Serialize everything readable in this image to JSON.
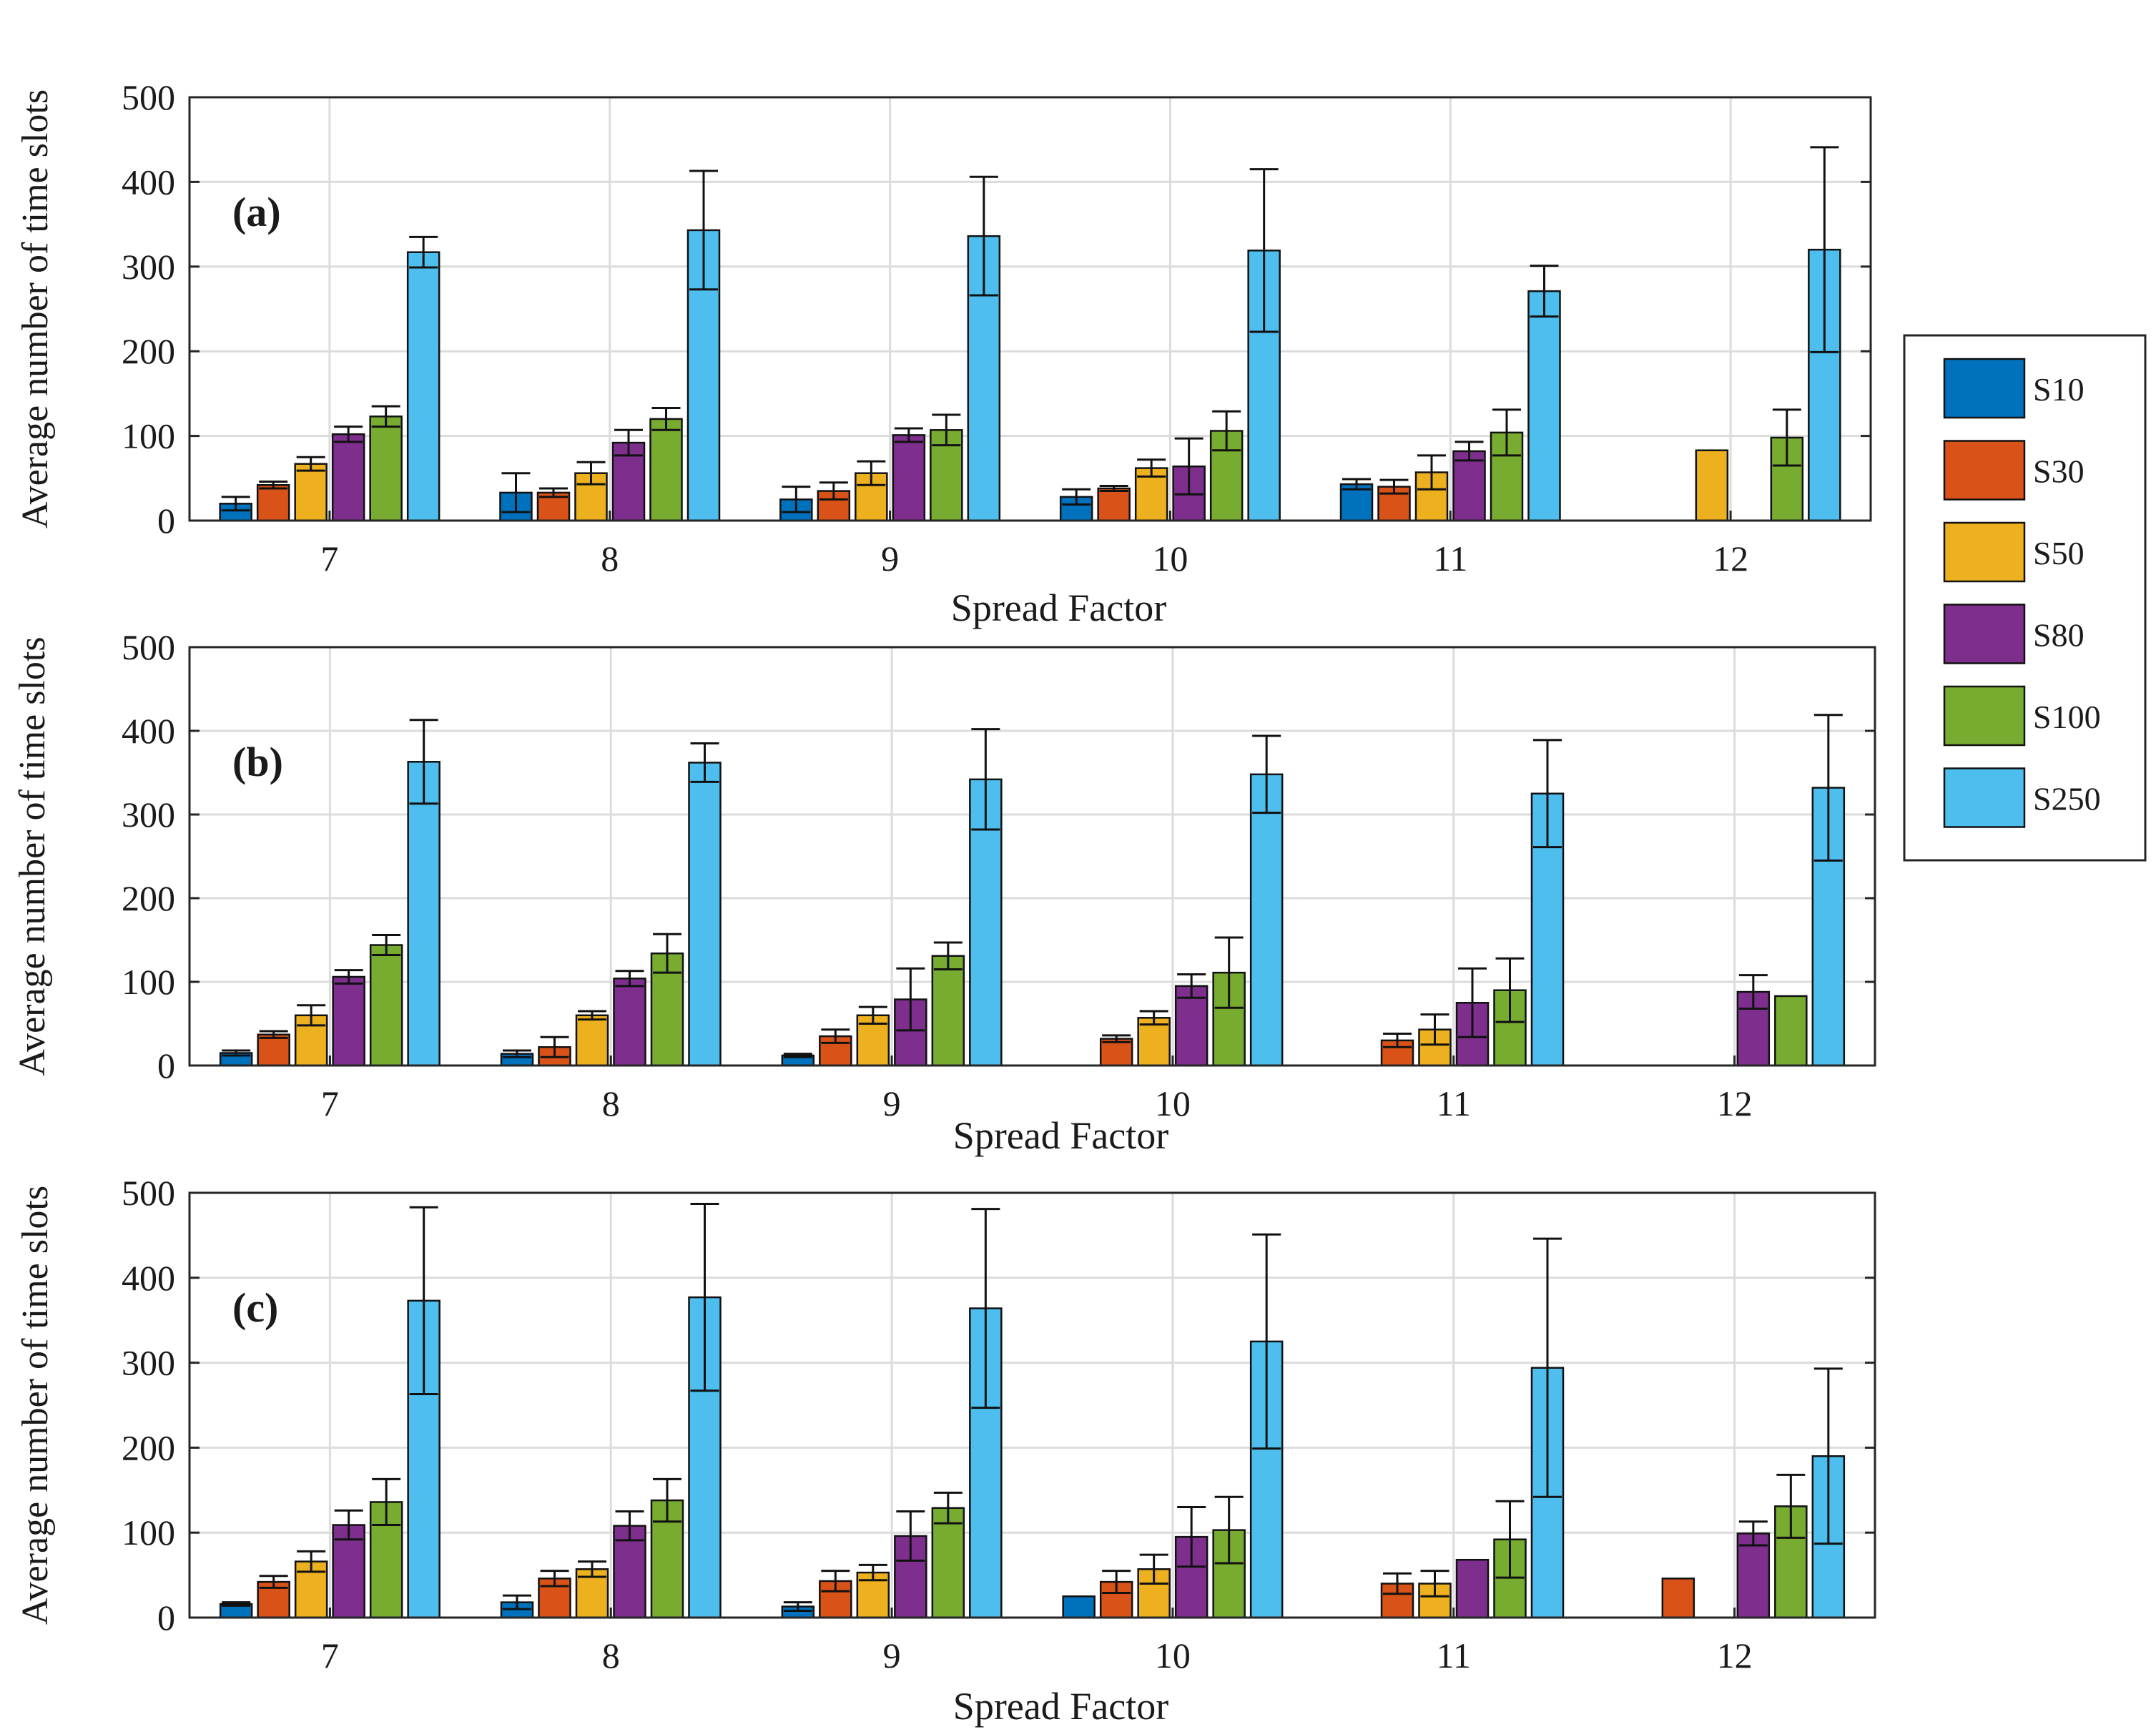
{
  "figure": {
    "legend": [
      {
        "name": "S10",
        "color": "#0072BD"
      },
      {
        "name": "S30",
        "color": "#D95319"
      },
      {
        "name": "S50",
        "color": "#EDB120"
      },
      {
        "name": "S80",
        "color": "#7E2F8E"
      },
      {
        "name": "S100",
        "color": "#77AC30"
      },
      {
        "name": "S250",
        "color": "#4DBEEE"
      }
    ]
  },
  "chart_data": [
    {
      "type": "bar",
      "panel_label": "(a)",
      "xlabel": "Spread Factor",
      "ylabel": "Average number of time slots",
      "categories": [
        "7",
        "8",
        "9",
        "10",
        "11",
        "12"
      ],
      "ylim": [
        0,
        500
      ],
      "yticks": [
        0,
        100,
        200,
        300,
        400,
        500
      ],
      "grid": true,
      "series": [
        {
          "name": "S10",
          "values": [
            20,
            33,
            25,
            28,
            43,
            null
          ],
          "err": [
            8,
            23,
            15,
            9,
            6,
            null
          ]
        },
        {
          "name": "S30",
          "values": [
            42,
            33,
            35,
            38,
            40,
            null
          ],
          "err": [
            4,
            5,
            10,
            3,
            8,
            null
          ]
        },
        {
          "name": "S50",
          "values": [
            67,
            56,
            56,
            62,
            57,
            83
          ],
          "err": [
            8,
            13,
            14,
            10,
            20,
            null
          ]
        },
        {
          "name": "S80",
          "values": [
            102,
            92,
            101,
            64,
            82,
            null
          ],
          "err": [
            9,
            15,
            8,
            33,
            11,
            null
          ]
        },
        {
          "name": "S100",
          "values": [
            123,
            120,
            107,
            106,
            104,
            98
          ],
          "err": [
            12,
            13,
            18,
            23,
            27,
            33
          ]
        },
        {
          "name": "S250",
          "values": [
            317,
            343,
            336,
            319,
            271,
            320
          ],
          "err": [
            18,
            70,
            70,
            96,
            30,
            121
          ]
        }
      ]
    },
    {
      "type": "bar",
      "panel_label": "(b)",
      "xlabel": "Spread Factor",
      "ylabel": "Average number of time slots",
      "categories": [
        "7",
        "8",
        "9",
        "10",
        "11",
        "12"
      ],
      "ylim": [
        0,
        500
      ],
      "yticks": [
        0,
        100,
        200,
        300,
        400,
        500
      ],
      "grid": true,
      "series": [
        {
          "name": "S10",
          "values": [
            15,
            14,
            12,
            null,
            null,
            null
          ],
          "err": [
            3,
            4,
            2,
            null,
            null,
            null
          ]
        },
        {
          "name": "S30",
          "values": [
            37,
            22,
            35,
            32,
            30,
            null
          ],
          "err": [
            4,
            12,
            8,
            4,
            8,
            null
          ]
        },
        {
          "name": "S50",
          "values": [
            60,
            60,
            60,
            57,
            43,
            null
          ],
          "err": [
            12,
            5,
            10,
            8,
            18,
            null
          ]
        },
        {
          "name": "S80",
          "values": [
            106,
            104,
            79,
            95,
            75,
            88
          ],
          "err": [
            8,
            9,
            37,
            14,
            41,
            20
          ]
        },
        {
          "name": "S100",
          "values": [
            144,
            134,
            131,
            111,
            90,
            83
          ],
          "err": [
            12,
            23,
            16,
            42,
            38,
            null
          ]
        },
        {
          "name": "S250",
          "values": [
            363,
            362,
            342,
            348,
            325,
            332
          ],
          "err": [
            50,
            23,
            60,
            46,
            64,
            87
          ]
        }
      ]
    },
    {
      "type": "bar",
      "panel_label": "(c)",
      "xlabel": "Spread Factor",
      "ylabel": "Average number of time slots",
      "categories": [
        "7",
        "8",
        "9",
        "10",
        "11",
        "12"
      ],
      "ylim": [
        0,
        500
      ],
      "yticks": [
        0,
        100,
        200,
        300,
        400,
        500
      ],
      "grid": true,
      "series": [
        {
          "name": "S10",
          "values": [
            16,
            18,
            13,
            25,
            null,
            null
          ],
          "err": [
            2,
            8,
            5,
            null,
            null,
            null
          ]
        },
        {
          "name": "S30",
          "values": [
            42,
            46,
            43,
            42,
            40,
            46
          ],
          "err": [
            7,
            9,
            12,
            13,
            12,
            null
          ]
        },
        {
          "name": "S50",
          "values": [
            66,
            57,
            53,
            57,
            40,
            null
          ],
          "err": [
            12,
            9,
            9,
            17,
            15,
            null
          ]
        },
        {
          "name": "S80",
          "values": [
            109,
            108,
            96,
            95,
            68,
            99
          ],
          "err": [
            17,
            17,
            29,
            35,
            null,
            14
          ]
        },
        {
          "name": "S100",
          "values": [
            136,
            138,
            129,
            103,
            92,
            131
          ],
          "err": [
            27,
            25,
            18,
            39,
            45,
            37
          ]
        },
        {
          "name": "S250",
          "values": [
            373,
            377,
            364,
            325,
            294,
            190
          ],
          "err": [
            110,
            110,
            117,
            126,
            152,
            103
          ]
        }
      ]
    }
  ]
}
